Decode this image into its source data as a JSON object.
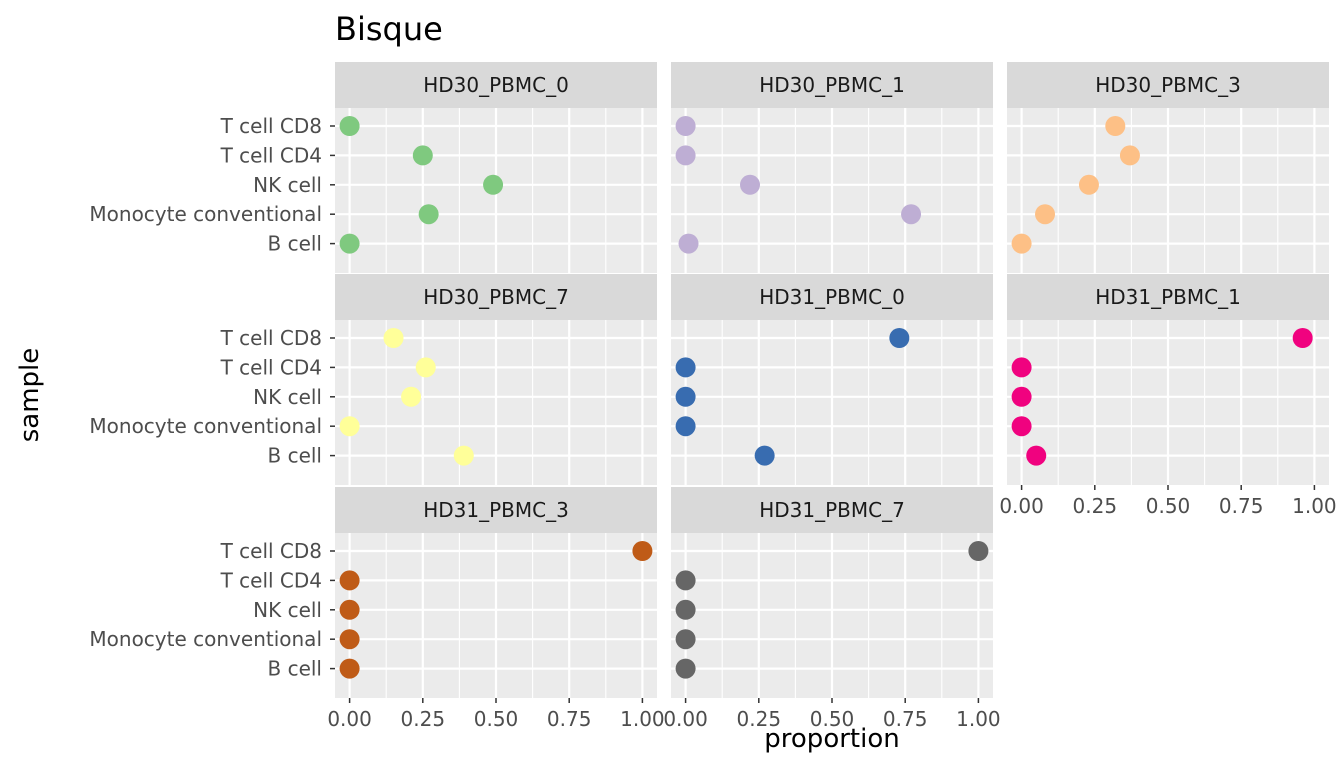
{
  "chart_data": {
    "type": "scatter",
    "title": "Bisque",
    "xlabel": "proportion",
    "ylabel": "sample",
    "xlim": [
      0,
      1
    ],
    "x_ticks": [
      "0.00",
      "0.25",
      "0.50",
      "0.75",
      "1.00"
    ],
    "x_tick_values": [
      0,
      0.25,
      0.5,
      0.75,
      1
    ],
    "categories": [
      "T cell CD8",
      "T cell CD4",
      "NK cell",
      "Monocyte conventional",
      "B cell"
    ],
    "grid": true,
    "panel_background": "#EBEBEB",
    "strip_background": "#D9D9D9",
    "panels": [
      {
        "name": "HD30_PBMC_0",
        "color": "#7FC97F",
        "values": [
          0.0,
          0.25,
          0.49,
          0.27,
          0.0
        ]
      },
      {
        "name": "HD30_PBMC_1",
        "color": "#BEAED4",
        "values": [
          0.0,
          0.0,
          0.22,
          0.77,
          0.01
        ]
      },
      {
        "name": "HD30_PBMC_3",
        "color": "#FDC086",
        "values": [
          0.32,
          0.37,
          0.23,
          0.08,
          0.0
        ]
      },
      {
        "name": "HD30_PBMC_7",
        "color": "#FFFF99",
        "values": [
          0.15,
          0.26,
          0.21,
          0.0,
          0.39
        ]
      },
      {
        "name": "HD31_PBMC_0",
        "color": "#386CB0",
        "values": [
          0.73,
          0.0,
          0.0,
          0.0,
          0.27
        ]
      },
      {
        "name": "HD31_PBMC_1",
        "color": "#F0027F",
        "values": [
          0.96,
          0.0,
          0.0,
          0.0,
          0.05
        ]
      },
      {
        "name": "HD31_PBMC_3",
        "color": "#BF5B17",
        "values": [
          1.0,
          0.0,
          0.0,
          0.0,
          0.0
        ]
      },
      {
        "name": "HD31_PBMC_7",
        "color": "#666666",
        "values": [
          1.0,
          0.0,
          0.0,
          0.0,
          0.0
        ]
      }
    ]
  }
}
